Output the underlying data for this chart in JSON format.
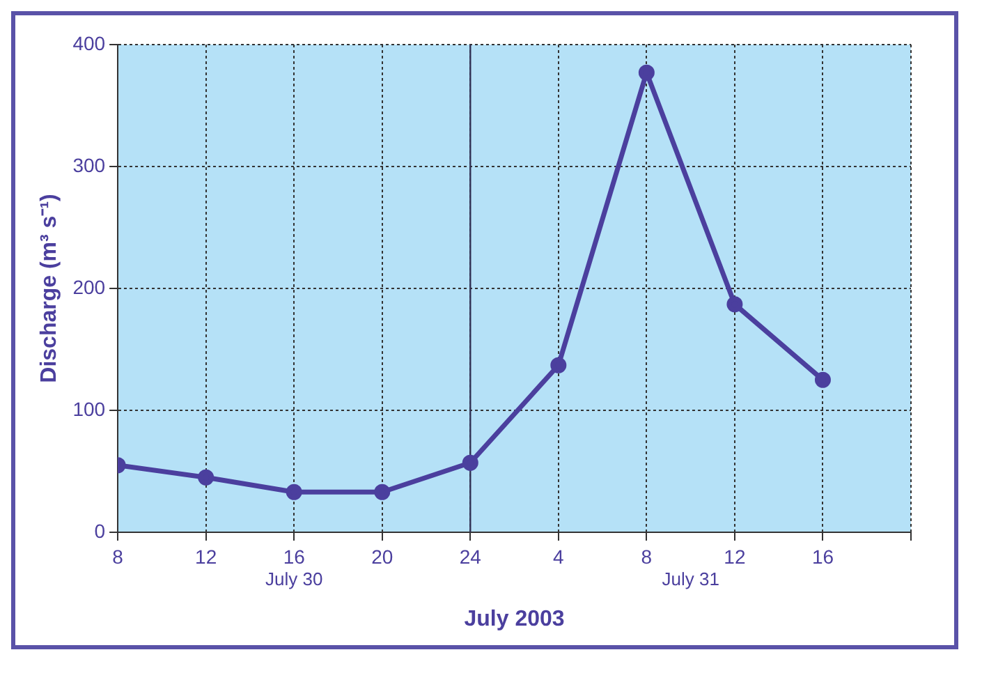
{
  "chart_data": {
    "type": "line",
    "xlabel": "July 2003",
    "ylabel": "Discharge (m³ s⁻¹)",
    "x": [
      "2003-07-30T08:00",
      "2003-07-30T12:00",
      "2003-07-30T16:00",
      "2003-07-30T20:00",
      "2003-07-31T00:00",
      "2003-07-31T04:00",
      "2003-07-31T08:00",
      "2003-07-31T12:00",
      "2003-07-31T16:00"
    ],
    "series": [
      {
        "color": "#4b3f9e",
        "values": [
          55,
          45,
          33,
          33,
          57,
          137,
          377,
          187,
          125
        ]
      }
    ],
    "xlim": [
      "2003-07-30T08:00",
      "2003-07-31T20:00"
    ],
    "xticks": [
      {
        "value": "2003-07-30T08:00",
        "label": "8"
      },
      {
        "value": "2003-07-30T12:00",
        "label": "12"
      },
      {
        "value": "2003-07-30T16:00",
        "label": "16"
      },
      {
        "value": "2003-07-30T20:00",
        "label": "20"
      },
      {
        "value": "2003-07-31T00:00",
        "label": "24"
      },
      {
        "value": "2003-07-31T04:00",
        "label": "4"
      },
      {
        "value": "2003-07-31T08:00",
        "label": "8"
      },
      {
        "value": "2003-07-31T12:00",
        "label": "12"
      },
      {
        "value": "2003-07-31T16:00",
        "label": "16"
      },
      {
        "value": "2003-07-31T20:00",
        "label": null
      }
    ],
    "ylim": [
      0,
      400
    ],
    "yticks": [
      0,
      100,
      200,
      300,
      400
    ],
    "ref_lines": [
      {
        "axis": "x",
        "value": "2003-07-31T00:00",
        "color": "#333355"
      }
    ],
    "annotations": [
      "July 30",
      "July 31"
    ],
    "grid": true,
    "legend": false,
    "marker": "circle",
    "line_style": "solid"
  }
}
